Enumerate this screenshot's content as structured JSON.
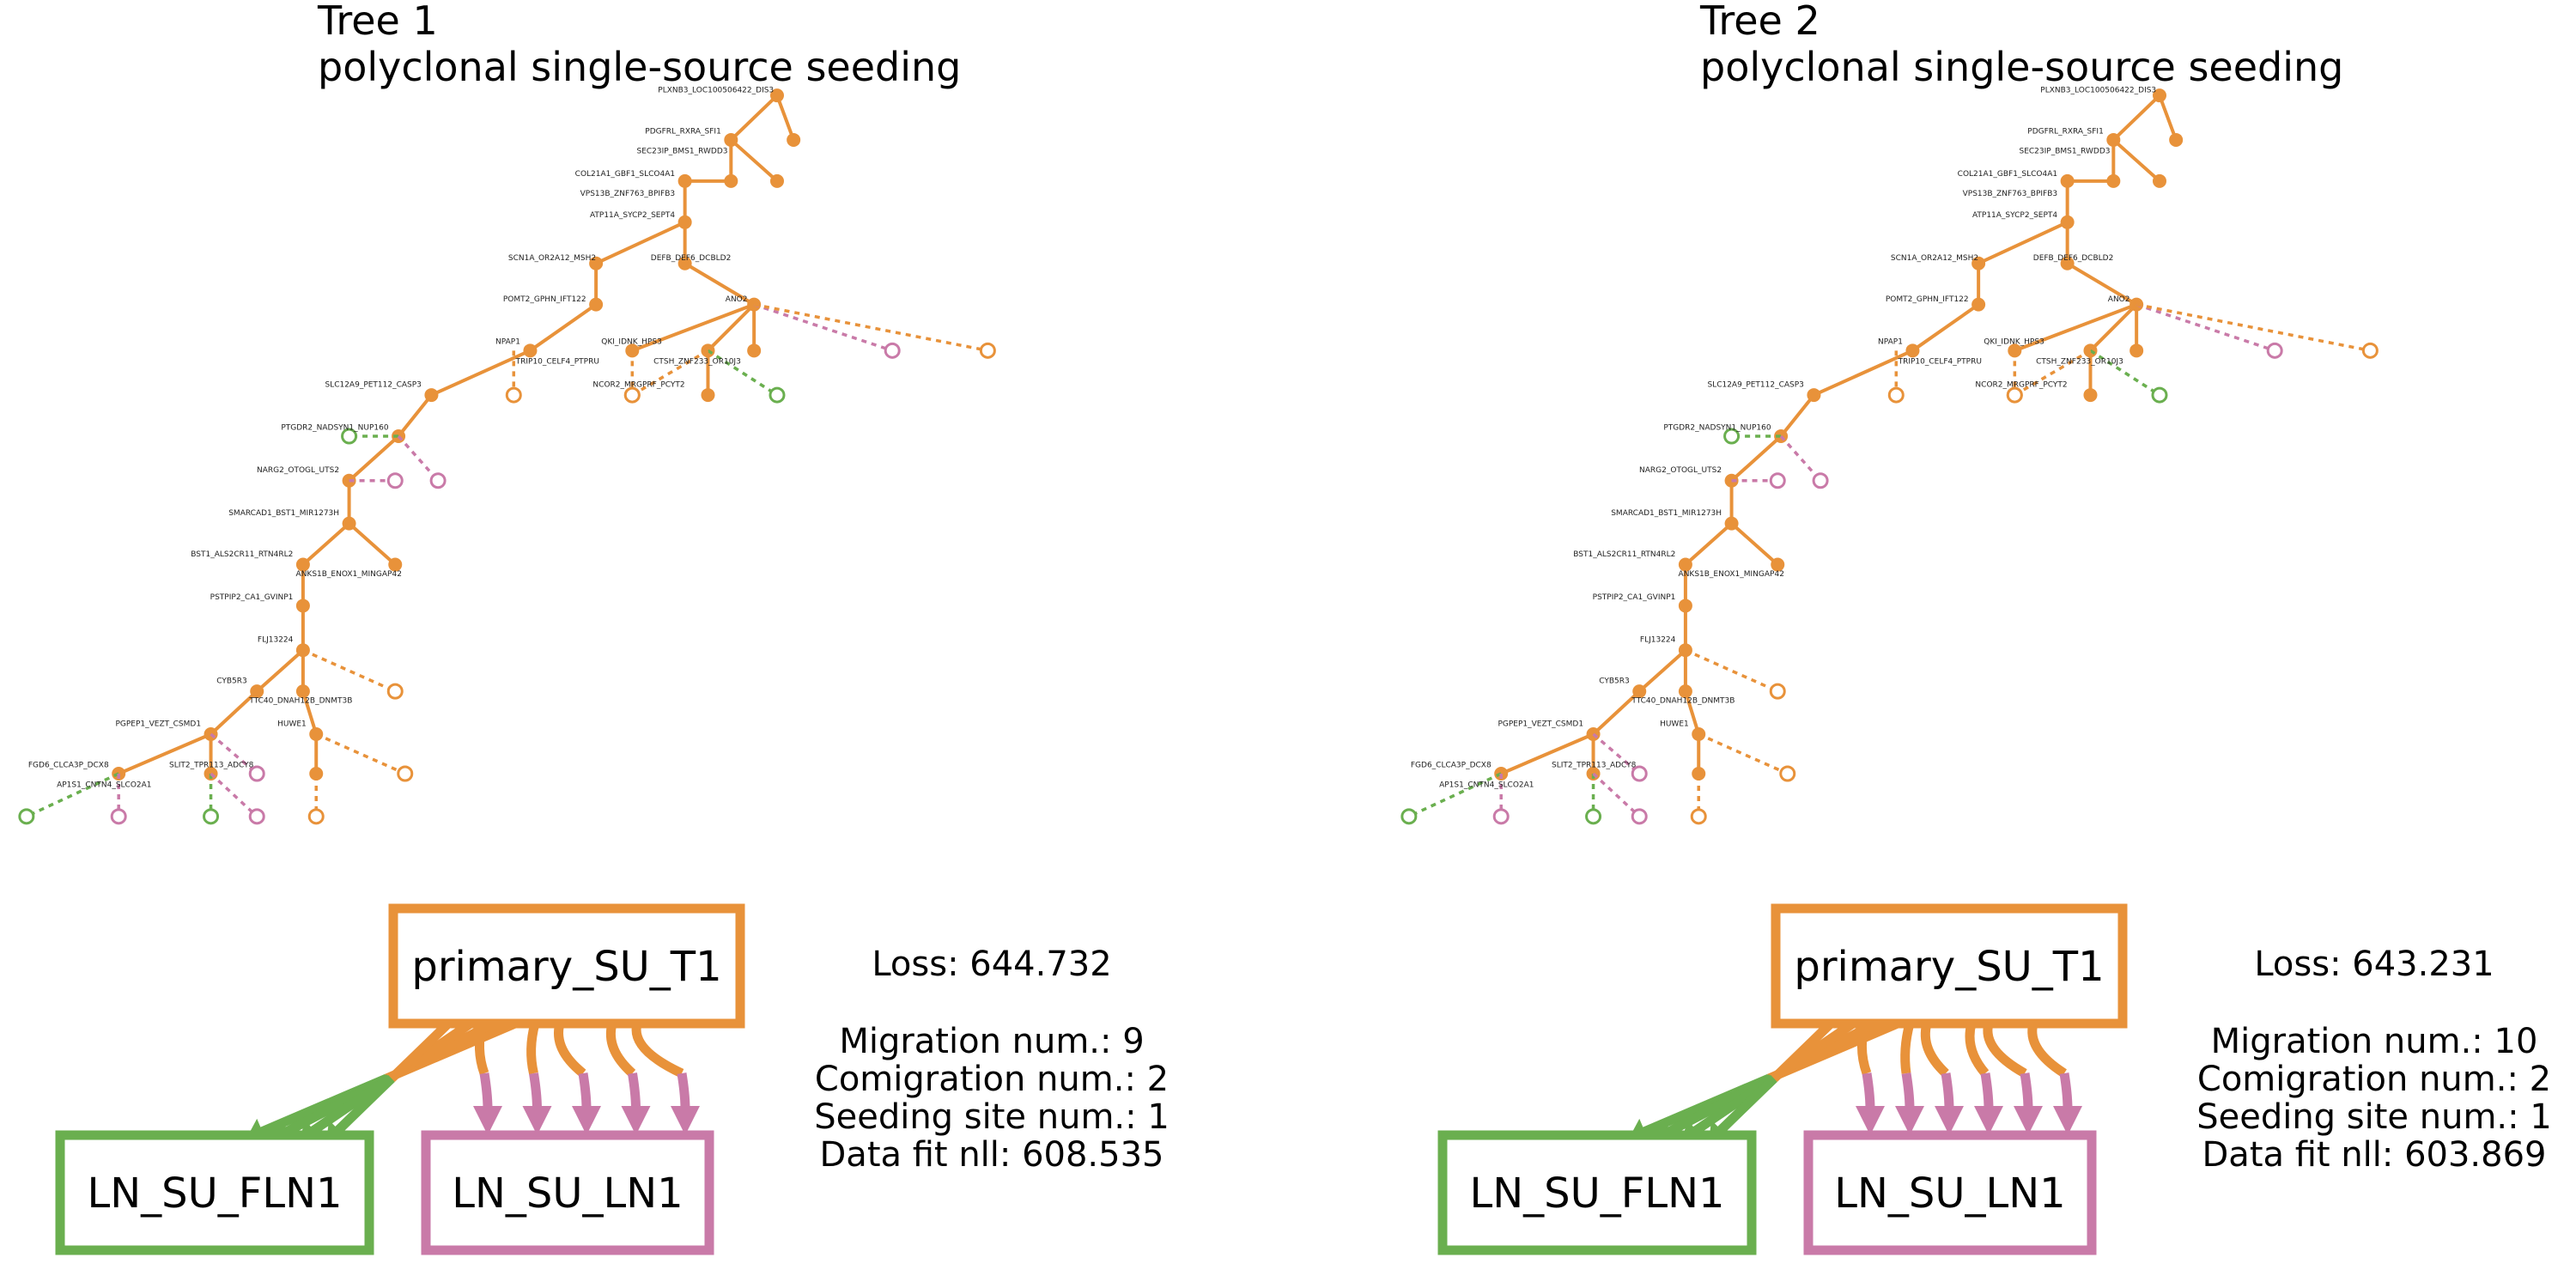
{
  "colors": {
    "primary": "#e8923a",
    "fln": "#6aaf4f",
    "ln": "#c97aa8",
    "text": "#000000"
  },
  "trees": [
    {
      "title": "Tree 1",
      "subtitle": "polyclonal single-source seeding",
      "loss": "Loss: 644.732",
      "migration": "Migration num.: 9",
      "comigration": "Comigration num.: 2",
      "seeding": "Seeding site num.: 1",
      "datafit": "Data fit nll: 608.535",
      "graph": {
        "primary_label": "primary_SU_T1",
        "fln_label": "LN_SU_FLN1",
        "ln_label": "LN_SU_LN1",
        "to_fln_edges": 4,
        "to_ln_edges": 5
      }
    },
    {
      "title": "Tree 2",
      "subtitle": "polyclonal single-source seeding",
      "loss": "Loss: 643.231",
      "migration": "Migration num.: 10",
      "comigration": "Comigration num.: 2",
      "seeding": "Seeding site num.: 1",
      "datafit": "Data fit nll: 603.869",
      "graph": {
        "primary_label": "primary_SU_T1",
        "fln_label": "LN_SU_FLN1",
        "ln_label": "LN_SU_LN1",
        "to_fln_edges": 4,
        "to_ln_edges": 6
      }
    }
  ],
  "tree_nodes": [
    {
      "id": "root",
      "label": "PLXNB3_LOC100506422_DIS3"
    },
    {
      "id": "n1",
      "label": "PDGFRL_RXRA_SFI1"
    },
    {
      "id": "n2",
      "label": "SEC23IP_BMS1_RWDD3"
    },
    {
      "id": "n3",
      "label": "COL21A1_GBF1_SLCO4A1"
    },
    {
      "id": "n4",
      "label": "VPS13B_ZNF763_BPIFB3"
    },
    {
      "id": "n5",
      "label": "ATP11A_SYCP2_SEPT4"
    },
    {
      "id": "n6",
      "label": "SCN1A_OR2A12_MSH2"
    },
    {
      "id": "n7",
      "label": "DEFB_DEF6_DCBLD2"
    },
    {
      "id": "n8",
      "label": "POMT2_GPHN_IFT122"
    },
    {
      "id": "n9",
      "label": "ANO2"
    },
    {
      "id": "n10",
      "label": "NPAP1"
    },
    {
      "id": "n11",
      "label": "QKI_IDNK_HPS3"
    },
    {
      "id": "n12",
      "label": "TRIP10_CELF4_PTPRU"
    },
    {
      "id": "n13",
      "label": "CTSH_ZNF233_OR10J3"
    },
    {
      "id": "n14",
      "label": "NCOR2_MRGPRF_PCYT2"
    },
    {
      "id": "n15",
      "label": "SLC12A9_PET112_CASP3"
    },
    {
      "id": "n16",
      "label": "PTGDR2_NADSYN1_NUP160"
    },
    {
      "id": "n17",
      "label": "NARG2_OTOGL_UTS2"
    },
    {
      "id": "n18",
      "label": "SMARCAD1_BST1_MIR1273H"
    },
    {
      "id": "n19",
      "label": "BST1_ALS2CR11_RTN4RL2"
    },
    {
      "id": "n20",
      "label": "ANKS1B_ENOX1_MINGAP42"
    },
    {
      "id": "n21",
      "label": "PSTPIP2_CA1_GVINP1"
    },
    {
      "id": "n22",
      "label": "FLJ13224"
    },
    {
      "id": "n23",
      "label": "CYB5R3"
    },
    {
      "id": "n24",
      "label": "TTC40_DNAH12B_DNMT3B"
    },
    {
      "id": "n25",
      "label": "PGPEP1_VEZT_CSMD1"
    },
    {
      "id": "n26",
      "label": "HUWE1"
    },
    {
      "id": "n27",
      "label": "FGD6_CLCA3P_DCX8"
    },
    {
      "id": "n28",
      "label": "SLIT2_TPR113_ADCY8"
    },
    {
      "id": "n29",
      "label": "AP1S1_CNTN4_SLCO2A1"
    }
  ]
}
